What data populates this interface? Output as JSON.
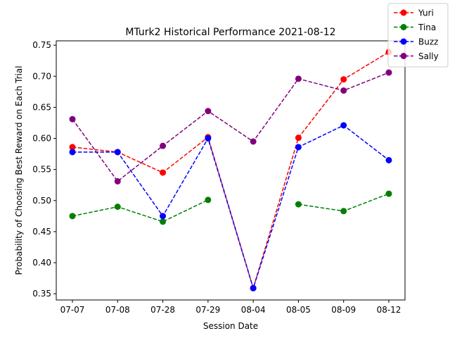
{
  "chart_data": {
    "type": "line",
    "title": "MTurk2 Historical Performance 2021-08-12",
    "xlabel": "Session Date",
    "ylabel": "Probability of Choosing Best Reward on Each Trial",
    "categories": [
      "07-07",
      "07-08",
      "07-28",
      "07-29",
      "08-04",
      "08-05",
      "08-09",
      "08-12"
    ],
    "ylim": [
      0.34,
      0.757
    ],
    "yticks": [
      0.35,
      0.4,
      0.45,
      0.5,
      0.55,
      0.6,
      0.65,
      0.7,
      0.75
    ],
    "ytick_labels": [
      "0.35",
      "0.40",
      "0.45",
      "0.50",
      "0.55",
      "0.60",
      "0.65",
      "0.70",
      "0.75"
    ],
    "grid": false,
    "legend_position": "top-right",
    "line_style": "dashed",
    "marker": "circle",
    "series": [
      {
        "name": "Yuri",
        "color": "#ff0000",
        "values": [
          0.586,
          0.578,
          0.545,
          0.602,
          0.359,
          0.601,
          0.695,
          0.739
        ]
      },
      {
        "name": "Tina",
        "color": "#008000",
        "values": [
          0.475,
          0.49,
          0.466,
          0.501,
          null,
          0.494,
          0.483,
          0.511
        ]
      },
      {
        "name": "Buzz",
        "color": "#0000ff",
        "values": [
          0.578,
          0.578,
          0.475,
          0.6,
          0.359,
          0.586,
          0.621,
          0.565
        ]
      },
      {
        "name": "Sally",
        "color": "#800080",
        "values": [
          0.631,
          0.531,
          0.588,
          0.644,
          0.595,
          0.696,
          0.677,
          0.706
        ]
      }
    ]
  }
}
